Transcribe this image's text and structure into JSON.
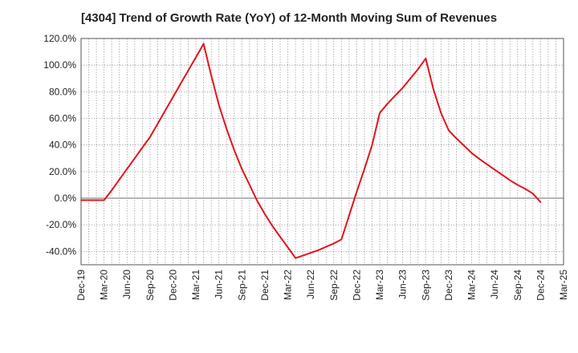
{
  "chart_data": {
    "type": "line",
    "title": "[4304]  Trend of Growth Rate (YoY) of 12-Month Moving Sum of Revenues",
    "xlabel": "",
    "ylabel": "",
    "ylim": [
      -50,
      120
    ],
    "y_ticks": [
      -40,
      -20,
      0,
      20,
      40,
      60,
      80,
      100,
      120
    ],
    "y_tick_labels": [
      "-40.0%",
      "-20.0%",
      "0.0%",
      "20.0%",
      "40.0%",
      "60.0%",
      "80.0%",
      "100.0%",
      "120.0%"
    ],
    "x_tick_labels": [
      "Dec-19",
      "Mar-20",
      "Jun-20",
      "Sep-20",
      "Dec-20",
      "Mar-21",
      "Jun-21",
      "Sep-21",
      "Dec-21",
      "Mar-22",
      "Jun-22",
      "Sep-22",
      "Dec-22",
      "Mar-23",
      "Jun-23",
      "Sep-23",
      "Dec-23",
      "Mar-24",
      "Jun-24",
      "Sep-24",
      "Dec-24",
      "Mar-25"
    ],
    "grid": true,
    "series": [
      {
        "color": "#e3141b",
        "x": [
          "2019-12",
          "2020-01",
          "2020-02",
          "2020-03",
          "2020-04",
          "2020-05",
          "2020-06",
          "2020-07",
          "2020-08",
          "2020-09",
          "2020-10",
          "2020-11",
          "2020-12",
          "2021-01",
          "2021-02",
          "2021-03",
          "2021-04",
          "2021-05",
          "2021-06",
          "2021-07",
          "2021-08",
          "2021-09",
          "2021-10",
          "2021-11",
          "2021-12",
          "2022-01",
          "2022-02",
          "2022-03",
          "2022-04",
          "2022-05",
          "2022-06",
          "2022-07",
          "2022-08",
          "2022-09",
          "2022-10",
          "2022-11",
          "2022-12",
          "2023-01",
          "2023-02",
          "2023-03",
          "2023-04",
          "2023-05",
          "2023-06",
          "2023-07",
          "2023-08",
          "2023-09",
          "2023-10",
          "2023-11",
          "2023-12",
          "2024-01",
          "2024-02",
          "2024-03",
          "2024-04",
          "2024-05",
          "2024-06",
          "2024-07",
          "2024-08",
          "2024-09",
          "2024-10",
          "2024-11",
          "2024-12"
        ],
        "values": [
          -1.5,
          -1.5,
          -1.5,
          -1.5,
          6.0,
          14.0,
          22.0,
          30.0,
          38.0,
          46.0,
          56.0,
          66.0,
          76.0,
          86.0,
          96.0,
          106.0,
          116.0,
          92.0,
          70.0,
          52.0,
          36.0,
          22.0,
          10.0,
          -2.0,
          -12.0,
          -21.0,
          -29.0,
          -37.0,
          -45.0,
          -43.0,
          -41.0,
          -39.0,
          -36.5,
          -34.0,
          -31.0,
          -13.0,
          5.0,
          22.0,
          40.0,
          64.0,
          71.0,
          77.0,
          83.0,
          90.0,
          97.0,
          105.0,
          82.0,
          64.0,
          51.0,
          45.0,
          39.5,
          34.0,
          29.5,
          25.5,
          21.5,
          17.5,
          13.5,
          10.0,
          7.0,
          3.5,
          -3.0
        ]
      }
    ]
  }
}
